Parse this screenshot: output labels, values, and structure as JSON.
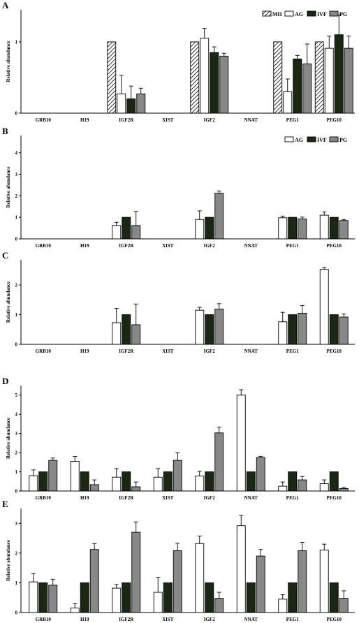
{
  "styles": {
    "MII": {
      "fill": "hatch",
      "color": "#ffffff"
    },
    "AG": {
      "fill": "solid",
      "color": "#ffffff"
    },
    "IVF": {
      "fill": "solid",
      "color": "#1c2614"
    },
    "PG": {
      "fill": "solid",
      "color": "#888888"
    }
  },
  "chart_data": [
    {
      "panel_label": "A",
      "type": "bar",
      "categories": [
        "GRB10",
        "H19",
        "IGF2R",
        "XIST",
        "IGF2",
        "NNAT",
        "PEG1",
        "PEG10"
      ],
      "ylabel": "Relative abundance",
      "ylim": [
        0,
        1.45
      ],
      "yticks": [
        0,
        1
      ],
      "legend": [
        "MII",
        "AG",
        "IVF",
        "PG"
      ],
      "legend_position": "top-right",
      "series": [
        {
          "name": "MII",
          "values": [
            null,
            null,
            1.0,
            null,
            1.0,
            null,
            1.0,
            1.0
          ],
          "errors": [
            null,
            null,
            0,
            null,
            0,
            null,
            0,
            0
          ]
        },
        {
          "name": "AG",
          "values": [
            null,
            null,
            0.27,
            null,
            1.05,
            null,
            0.3,
            0.91
          ],
          "errors": [
            null,
            null,
            0.26,
            null,
            0.14,
            null,
            0.18,
            0.17
          ]
        },
        {
          "name": "IVF",
          "values": [
            null,
            null,
            0.2,
            null,
            0.85,
            null,
            0.76,
            1.1
          ],
          "errors": [
            null,
            null,
            0.18,
            null,
            0.08,
            null,
            0.05,
            0.28
          ]
        },
        {
          "name": "PG",
          "values": [
            null,
            null,
            0.27,
            null,
            0.8,
            null,
            0.69,
            0.91
          ],
          "errors": [
            null,
            null,
            0.08,
            null,
            0.04,
            null,
            0.28,
            0.17
          ]
        }
      ]
    },
    {
      "panel_label": "B",
      "type": "bar",
      "categories": [
        "GRB10",
        "H19",
        "IGF2R",
        "XIST",
        "IGF2",
        "NNAT",
        "PEG1",
        "PEG10"
      ],
      "ylabel": "Relative abundance",
      "ylim": [
        0,
        4.8
      ],
      "yticks": [
        0,
        1,
        2,
        3,
        4
      ],
      "legend": [
        "AG",
        "IVF",
        "PG"
      ],
      "legend_position": "top-right",
      "series": [
        {
          "name": "AG",
          "values": [
            null,
            null,
            0.62,
            null,
            0.9,
            null,
            0.98,
            1.1
          ],
          "errors": [
            null,
            null,
            0.15,
            null,
            0.4,
            null,
            0.08,
            0.15
          ]
        },
        {
          "name": "IVF",
          "values": [
            null,
            null,
            1.0,
            null,
            1.0,
            null,
            1.0,
            1.0
          ],
          "errors": [
            null,
            null,
            0,
            null,
            0,
            null,
            0,
            0
          ]
        },
        {
          "name": "PG",
          "values": [
            null,
            null,
            0.62,
            null,
            2.12,
            null,
            0.93,
            0.85
          ],
          "errors": [
            null,
            null,
            0.65,
            null,
            0.1,
            null,
            0.08,
            0.05
          ]
        }
      ]
    },
    {
      "panel_label": "C",
      "type": "bar",
      "categories": [
        "GRB10",
        "H19",
        "IGF2R",
        "XIST",
        "IGF2",
        "NNAT",
        "PEG1",
        "PEG10"
      ],
      "ylabel": "Relative abundance",
      "ylim": [
        0,
        2.85
      ],
      "yticks": [
        0,
        1,
        2
      ],
      "series": [
        {
          "name": "AG",
          "values": [
            null,
            null,
            0.73,
            null,
            1.15,
            null,
            0.76,
            2.53
          ],
          "errors": [
            null,
            null,
            0.48,
            null,
            0.1,
            null,
            0.32,
            0.06
          ]
        },
        {
          "name": "IVF",
          "values": [
            null,
            null,
            1.0,
            null,
            1.0,
            null,
            1.0,
            1.0
          ],
          "errors": [
            null,
            null,
            0,
            null,
            0,
            null,
            0,
            0
          ]
        },
        {
          "name": "PG",
          "values": [
            null,
            null,
            0.66,
            null,
            1.19,
            null,
            1.05,
            0.92
          ],
          "errors": [
            null,
            null,
            0.7,
            null,
            0.18,
            null,
            0.26,
            0.1
          ]
        }
      ]
    },
    {
      "panel_label": "D",
      "type": "bar",
      "categories": [
        "GRB10",
        "H19",
        "IGF2R",
        "XIST",
        "IGF2",
        "NNAT",
        "PEG1",
        "PEG10"
      ],
      "ylabel": "Relative abundance",
      "ylim": [
        0,
        5.5
      ],
      "yticks": [
        0,
        1,
        2,
        3,
        4,
        5
      ],
      "series": [
        {
          "name": "AG",
          "values": [
            0.8,
            1.55,
            0.72,
            0.72,
            0.78,
            5.0,
            0.25,
            0.38
          ],
          "errors": [
            0.3,
            0.25,
            0.45,
            0.45,
            0.25,
            0.28,
            0.22,
            0.2
          ]
        },
        {
          "name": "IVF",
          "values": [
            1.0,
            1.0,
            1.0,
            1.0,
            1.0,
            1.0,
            1.0,
            1.0
          ],
          "errors": [
            0,
            0,
            0,
            0,
            0,
            0,
            0,
            0
          ]
        },
        {
          "name": "PG",
          "values": [
            1.6,
            0.33,
            0.22,
            1.6,
            3.03,
            1.75,
            0.58,
            0.13
          ],
          "errors": [
            0.12,
            0.25,
            0.25,
            0.4,
            0.3,
            0.06,
            0.18,
            0.05
          ]
        }
      ]
    },
    {
      "panel_label": "E",
      "type": "bar",
      "categories": [
        "GRB10",
        "H19",
        "IGF2R",
        "XIST",
        "IGF2",
        "NNAT",
        "PEG1",
        "PEG10"
      ],
      "ylabel": "Relative abundance",
      "ylim": [
        0,
        3.5
      ],
      "yticks": [
        0,
        1,
        2,
        3
      ],
      "series": [
        {
          "name": "AG",
          "values": [
            1.03,
            0.15,
            0.82,
            0.68,
            2.32,
            2.92,
            0.45,
            2.1
          ],
          "errors": [
            0.28,
            0.15,
            0.12,
            0.5,
            0.25,
            0.35,
            0.15,
            0.2
          ]
        },
        {
          "name": "IVF",
          "values": [
            1.0,
            1.0,
            1.0,
            1.0,
            1.0,
            1.0,
            1.0,
            1.0
          ],
          "errors": [
            0,
            0,
            0,
            0,
            0,
            0,
            0,
            0
          ]
        },
        {
          "name": "PG",
          "values": [
            0.92,
            2.12,
            2.7,
            2.08,
            0.48,
            1.9,
            2.08,
            0.48
          ],
          "errors": [
            0.2,
            0.2,
            0.35,
            0.25,
            0.2,
            0.22,
            0.28,
            0.25
          ]
        }
      ]
    }
  ]
}
